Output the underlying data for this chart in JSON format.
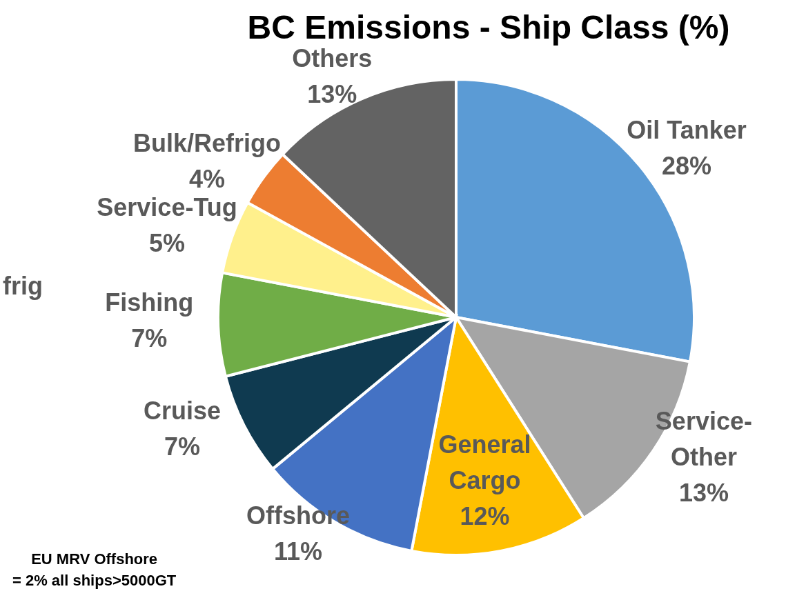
{
  "chart_data": {
    "type": "pie",
    "title": "BC Emissions - Ship Class (%)",
    "categories": [
      "Oil Tanker",
      "Service-Other",
      "General Cargo",
      "Offshore",
      "Cruise",
      "Fishing",
      "Service-Tug",
      "Bulk/Refrigo",
      "Others"
    ],
    "values": [
      28,
      13,
      12,
      11,
      7,
      7,
      5,
      4,
      13
    ],
    "value_labels": [
      "28%",
      "13%",
      "12%",
      "11%",
      "7%",
      "7%",
      "5%",
      "4%",
      "13%"
    ],
    "colors": [
      "#5b9bd5",
      "#a5a5a5",
      "#ffc000",
      "#4472c4",
      "#0f3a50",
      "#70ad47",
      "#fff08c",
      "#ed7d31",
      "#636363"
    ],
    "annotations": [
      "EU MRV Offshore\n= 2% all ships>5000GT",
      "frig"
    ],
    "legend": false
  }
}
